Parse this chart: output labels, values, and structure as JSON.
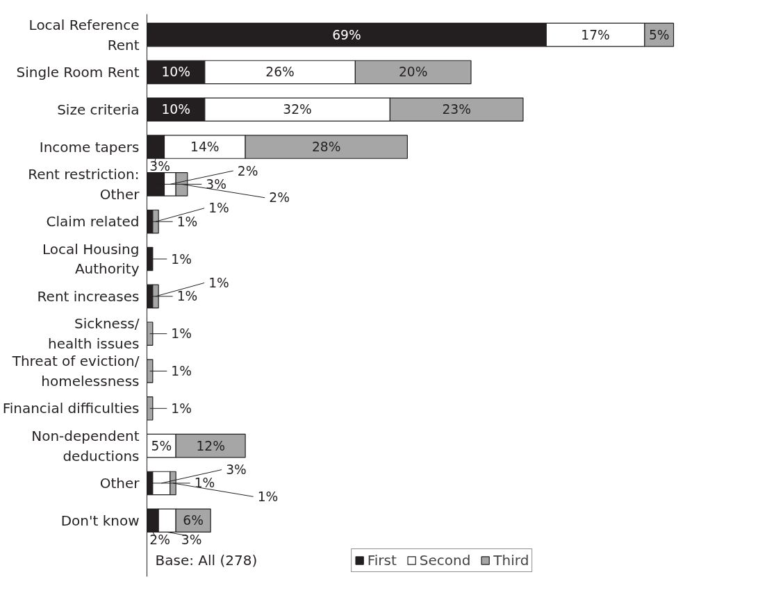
{
  "chart_data": {
    "type": "bar",
    "orientation": "horizontal",
    "stacked": true,
    "categories": [
      "Local Reference\nRent",
      "Single Room Rent",
      "Size criteria",
      "Income tapers",
      "Rent restriction:\nOther",
      "Claim related",
      "Local Housing\nAuthority",
      "Rent increases",
      "Sickness/\nhealth issues",
      "Threat of eviction/\nhomelessness",
      "Financial difficulties",
      "Non-dependent\ndeductions",
      "Other",
      "Don't know"
    ],
    "series": [
      {
        "name": "First",
        "color": "#231f20",
        "values": [
          69,
          10,
          10,
          3,
          3,
          1,
          1,
          1,
          null,
          null,
          null,
          null,
          1,
          2
        ],
        "value_labels": [
          "69%",
          "10%",
          "10%",
          "3%",
          "3%",
          "1%",
          "1%",
          "1%",
          null,
          null,
          null,
          null,
          "1%",
          "2%"
        ]
      },
      {
        "name": "Second",
        "color": "#ffffff",
        "values": [
          17,
          26,
          32,
          14,
          2,
          null,
          null,
          null,
          null,
          null,
          null,
          5,
          3,
          3
        ],
        "value_labels": [
          "17%",
          "26%",
          "32%",
          "14%",
          "2%",
          null,
          null,
          null,
          null,
          null,
          null,
          "5%",
          "3%",
          "3%"
        ]
      },
      {
        "name": "Third",
        "color": "#a6a6a6",
        "values": [
          5,
          20,
          23,
          28,
          2,
          1,
          null,
          1,
          1,
          1,
          1,
          12,
          1,
          6
        ],
        "value_labels": [
          "5%",
          "20%",
          "23%",
          "28%",
          "2%",
          "1%",
          null,
          "1%",
          "1%",
          "1%",
          "1%",
          "12%",
          "1%",
          "6%"
        ]
      }
    ],
    "legend": "bottom",
    "annotations": [
      "Base: All (278)"
    ]
  }
}
